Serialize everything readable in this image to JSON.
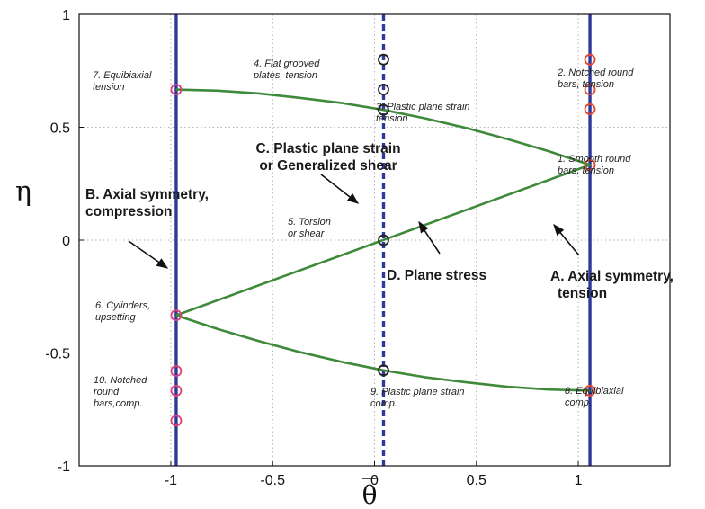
{
  "chart_data": {
    "type": "line",
    "title": "",
    "xlabel": "θ",
    "ylabel": "η",
    "xlim": [
      -1.45,
      1.45
    ],
    "ylim": [
      -1,
      1
    ],
    "x_ticks": [
      -1,
      -0.5,
      0,
      0.5,
      1
    ],
    "y_ticks": [
      1,
      0.5,
      0,
      -0.5,
      -1
    ],
    "x_tick_labels": [
      "-1",
      "-0.5",
      "0",
      "0.5",
      "1"
    ],
    "y_tick_labels": [
      "1",
      "0.5",
      "0",
      "-0.5",
      "-1"
    ],
    "grid": true,
    "vertical_lines": [
      {
        "x": -1,
        "style": "solid"
      },
      {
        "x": 0,
        "style": "dashed"
      },
      {
        "x": 1,
        "style": "solid"
      }
    ],
    "series": [
      {
        "x": [
          -1,
          -0.8,
          -0.6,
          -0.4,
          -0.2,
          0,
          0.2,
          0.4,
          0.6,
          0.8,
          1
        ],
        "y": [
          0.667,
          0.662,
          0.65,
          0.63,
          0.607,
          0.577,
          0.54,
          0.497,
          0.448,
          0.394,
          0.333
        ]
      },
      {
        "x": [
          -1,
          1
        ],
        "y": [
          -0.333,
          0.333
        ]
      },
      {
        "x": [
          -1,
          -0.8,
          -0.6,
          -0.4,
          -0.2,
          0,
          0.2,
          0.4,
          0.6,
          0.8,
          1
        ],
        "y": [
          -0.333,
          -0.394,
          -0.448,
          -0.497,
          -0.54,
          -0.577,
          -0.607,
          -0.63,
          -0.65,
          -0.662,
          -0.667
        ]
      }
    ],
    "markers": [
      {
        "x": -1,
        "y": 0.667,
        "color": "#e0407a"
      },
      {
        "x": -1,
        "y": -0.333,
        "color": "#e0407a"
      },
      {
        "x": -1,
        "y": -0.58,
        "color": "#e0407a"
      },
      {
        "x": -1,
        "y": -0.667,
        "color": "#e0407a"
      },
      {
        "x": -1,
        "y": -0.8,
        "color": "#e0407a"
      },
      {
        "x": 0,
        "y": 0.8,
        "color": "#222222"
      },
      {
        "x": 0,
        "y": 0.667,
        "color": "#222222"
      },
      {
        "x": 0,
        "y": 0.577,
        "color": "#222222"
      },
      {
        "x": 0,
        "y": 0,
        "color": "#222222"
      },
      {
        "x": 0,
        "y": -0.577,
        "color": "#222222"
      },
      {
        "x": 1,
        "y": 0.8,
        "color": "#e8452c"
      },
      {
        "x": 1,
        "y": 0.667,
        "color": "#e8452c"
      },
      {
        "x": 1,
        "y": 0.58,
        "color": "#e8452c"
      },
      {
        "x": 1,
        "y": 0.333,
        "color": "#e8452c"
      },
      {
        "x": 1,
        "y": -0.667,
        "color": "#e8452c"
      }
    ],
    "annotations": [
      {
        "lines": [
          "7. Equibiaxial",
          "tension"
        ]
      },
      {
        "lines": [
          "4. Flat grooved",
          "plates, tension"
        ]
      },
      {
        "lines": [
          "2. Notched round",
          "bars, tension"
        ]
      },
      {
        "lines": [
          "3. Plastic plane strain",
          "tension"
        ]
      },
      {
        "lines": [
          "1. Smooth round",
          "bars, tension"
        ]
      },
      {
        "lines": [
          "5. Torsion",
          "or shear"
        ]
      },
      {
        "lines": [
          "6. Cylinders,",
          "upsetting"
        ]
      },
      {
        "lines": [
          "10. Notched",
          "round",
          "bars,comp."
        ]
      },
      {
        "lines": [
          "9. Plastic plane strain",
          "comp."
        ]
      },
      {
        "lines": [
          "8. Equibiaxial",
          "comp."
        ]
      }
    ],
    "regions": [
      {
        "lines": [
          "C. Plastic plane strain",
          "or Generalized shear"
        ]
      },
      {
        "lines": [
          "B. Axial symmetry,",
          "compression"
        ]
      },
      {
        "lines": [
          "D. Plane stress"
        ]
      },
      {
        "lines": [
          "A. Axial symmetry,",
          "tension"
        ]
      }
    ]
  },
  "colors": {
    "vertical_line": "#2d3a9c",
    "curve": "#3f8a3a",
    "grid": "#9a9a9a"
  }
}
